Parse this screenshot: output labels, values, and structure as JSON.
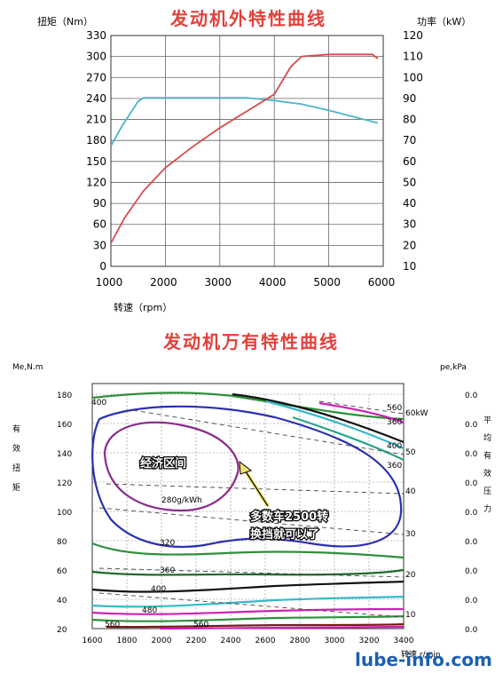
{
  "chart_data": [
    {
      "type": "line",
      "title": "发动机外特性曲线",
      "y_left_label": "扭矩（Nm）",
      "y_right_label": "功率（kW）",
      "xlabel": "转速（rpm）",
      "x_ticks": [
        1000,
        2000,
        3000,
        4000,
        5000,
        6000
      ],
      "y_left_ticks": [
        0,
        30,
        60,
        90,
        120,
        150,
        180,
        210,
        240,
        270,
        300,
        330
      ],
      "y_right_ticks": [
        10,
        20,
        30,
        40,
        50,
        60,
        70,
        80,
        90,
        100,
        110,
        120
      ],
      "xlim": [
        1000,
        6000
      ],
      "ylim_left": [
        0,
        330
      ],
      "ylim_right": [
        10,
        120
      ],
      "grid": true,
      "series": [
        {
          "axis": "left",
          "color": "#4ab6c9",
          "x": [
            1000,
            1200,
            1500,
            1600,
            2000,
            2500,
            3000,
            3500,
            4000,
            4500,
            5000,
            5500,
            5900
          ],
          "y": [
            172,
            200,
            236,
            241,
            241,
            241,
            241,
            241,
            237,
            232,
            223,
            213,
            205
          ]
        },
        {
          "axis": "right",
          "color": "#d9494b",
          "x": [
            1000,
            1250,
            1600,
            2000,
            2500,
            3000,
            3500,
            4000,
            4300,
            4500,
            5000,
            5500,
            5800,
            5900
          ],
          "y": [
            21,
            33,
            46,
            57,
            67,
            76,
            84,
            92,
            105,
            110,
            111,
            111,
            111,
            109
          ]
        }
      ]
    },
    {
      "type": "contour",
      "title": "发动机万有特性曲线",
      "y_left_label": "Me,N.m",
      "y_left_side_label": "有效扭矩",
      "y_right_label": "pe,kPa",
      "y_right_side_label": "平均有效压力",
      "xlabel": "转速 r/min",
      "x_ticks": [
        1600,
        1800,
        2000,
        2200,
        2400,
        2600,
        2800,
        3000,
        3200,
        3400
      ],
      "y_left_ticks": [
        20,
        40,
        60,
        80,
        100,
        120,
        140,
        160,
        180
      ],
      "y_right_ticks": [
        "0.0",
        "0.0",
        "0.0",
        "0.0",
        "0.0",
        "0.0",
        "0.0",
        "0.0",
        "0.0"
      ],
      "power_ticks": [
        10,
        20,
        30,
        40,
        50
      ],
      "power_unit_label": "60kW",
      "xlim": [
        1600,
        3400
      ],
      "ylim": [
        20,
        180
      ],
      "contour_labels": [
        "400",
        "560",
        "360",
        "400",
        "360",
        "280g/kWh",
        "320",
        "360",
        "400",
        "480",
        "560",
        "560"
      ],
      "economy_zone_label": "经济区间",
      "callout": [
        "多数车2500转",
        "换挡就可以了"
      ]
    }
  ],
  "watermark": "lube-info.com"
}
